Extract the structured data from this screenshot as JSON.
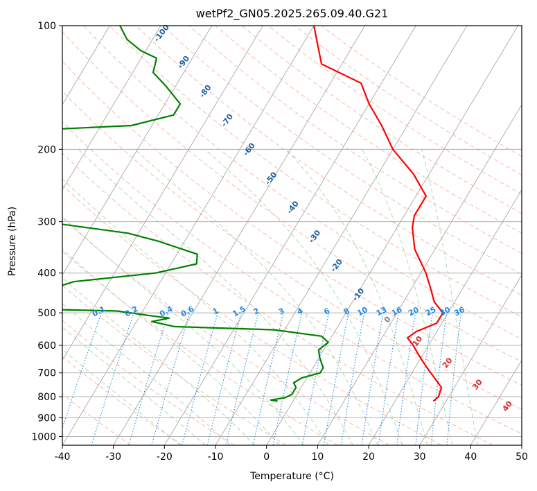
{
  "chart_data": {
    "type": "line",
    "title": "wetPf2_GN05.2025.265.09.40.G21",
    "xlabel": "Temperature (°C)",
    "ylabel": "Pressure (hPa)",
    "xlim": [
      -40,
      50
    ],
    "ylim": [
      1050,
      100
    ],
    "y_scale": "log",
    "x_ticks": [
      "-40",
      "-30",
      "-20",
      "-10",
      "0",
      "10",
      "20",
      "30",
      "40",
      "50"
    ],
    "y_ticks": [
      "100",
      "200",
      "300",
      "400",
      "500",
      "600",
      "700",
      "800",
      "900",
      "1000"
    ],
    "grid": true,
    "skew_t": true,
    "series": [
      {
        "color": "#ff0000",
        "points": [
          [
            27.5,
            820
          ],
          [
            28,
            800
          ],
          [
            27.5,
            760
          ],
          [
            25,
            720
          ],
          [
            23,
            690
          ],
          [
            21,
            660
          ],
          [
            19,
            630
          ],
          [
            17,
            600
          ],
          [
            15,
            575
          ],
          [
            16,
            555
          ],
          [
            19,
            530
          ],
          [
            19,
            500
          ],
          [
            16,
            470
          ],
          [
            14,
            440
          ],
          [
            11,
            400
          ],
          [
            6,
            350
          ],
          [
            3,
            310
          ],
          [
            2,
            290
          ],
          [
            2,
            260
          ],
          [
            -3,
            230
          ],
          [
            -10,
            200
          ],
          [
            -15,
            175
          ],
          [
            -20,
            155
          ],
          [
            -24,
            138
          ],
          [
            -34,
            124
          ],
          [
            -40,
            100
          ]
        ]
      },
      {
        "color": "#008000",
        "points": [
          [
            -3,
            820
          ],
          [
            -4.5,
            815
          ],
          [
            -2,
            805
          ],
          [
            -1,
            790
          ],
          [
            -1,
            760
          ],
          [
            -2,
            740
          ],
          [
            -1,
            720
          ],
          [
            2,
            700
          ],
          [
            2,
            680
          ],
          [
            1,
            660
          ],
          [
            0,
            640
          ],
          [
            -1,
            615
          ],
          [
            0,
            590
          ],
          [
            -2,
            570
          ],
          [
            -12,
            550
          ],
          [
            -32,
            540
          ],
          [
            -37,
            525
          ],
          [
            -34,
            515
          ],
          [
            -38,
            508
          ],
          [
            -45,
            495
          ],
          [
            -60,
            490
          ],
          [
            -70,
            480
          ],
          [
            -71,
            460
          ],
          [
            -63,
            450
          ],
          [
            -57,
            420
          ],
          [
            -42,
            400
          ],
          [
            -35,
            380
          ],
          [
            -36,
            360
          ],
          [
            -45,
            335
          ],
          [
            -52,
            320
          ],
          [
            -70,
            300
          ],
          [
            -73,
            285
          ],
          [
            -75,
            270
          ],
          [
            -80,
            250
          ],
          [
            -80,
            225
          ],
          [
            -82,
            200
          ],
          [
            -84,
            180
          ],
          [
            -64,
            175
          ],
          [
            -57,
            165
          ],
          [
            -57,
            155
          ],
          [
            -62,
            140
          ],
          [
            -66,
            130
          ],
          [
            -67,
            120
          ],
          [
            -71,
            115
          ],
          [
            -75,
            108
          ],
          [
            -78,
            100
          ]
        ]
      }
    ],
    "dry_adiabat_labels": [
      "-100",
      "-90",
      "-80",
      "-70",
      "-60",
      "-50",
      "-40",
      "-30",
      "-20",
      "-10",
      "0",
      "10",
      "20",
      "30",
      "40"
    ],
    "mixing_ratio_labels": [
      "0.1",
      "0.2",
      "0.4",
      "0.6",
      "1",
      "1.5",
      "2",
      "3",
      "4",
      "6",
      "8",
      "10",
      "13",
      "16",
      "20",
      "25",
      "30",
      "36"
    ],
    "colors": {
      "temperature": "#ff0000",
      "dewpoint": "#008000",
      "isotherm": "#9e9e9e",
      "dry_adiabat": "#f7a08a",
      "moist_adiabat": "#9ecf9e",
      "mixing_ratio": "#1e88e5",
      "dry_adiabat_label_cold": "#1f5fa0",
      "dry_adiabat_label_warm": "#d62728"
    }
  }
}
